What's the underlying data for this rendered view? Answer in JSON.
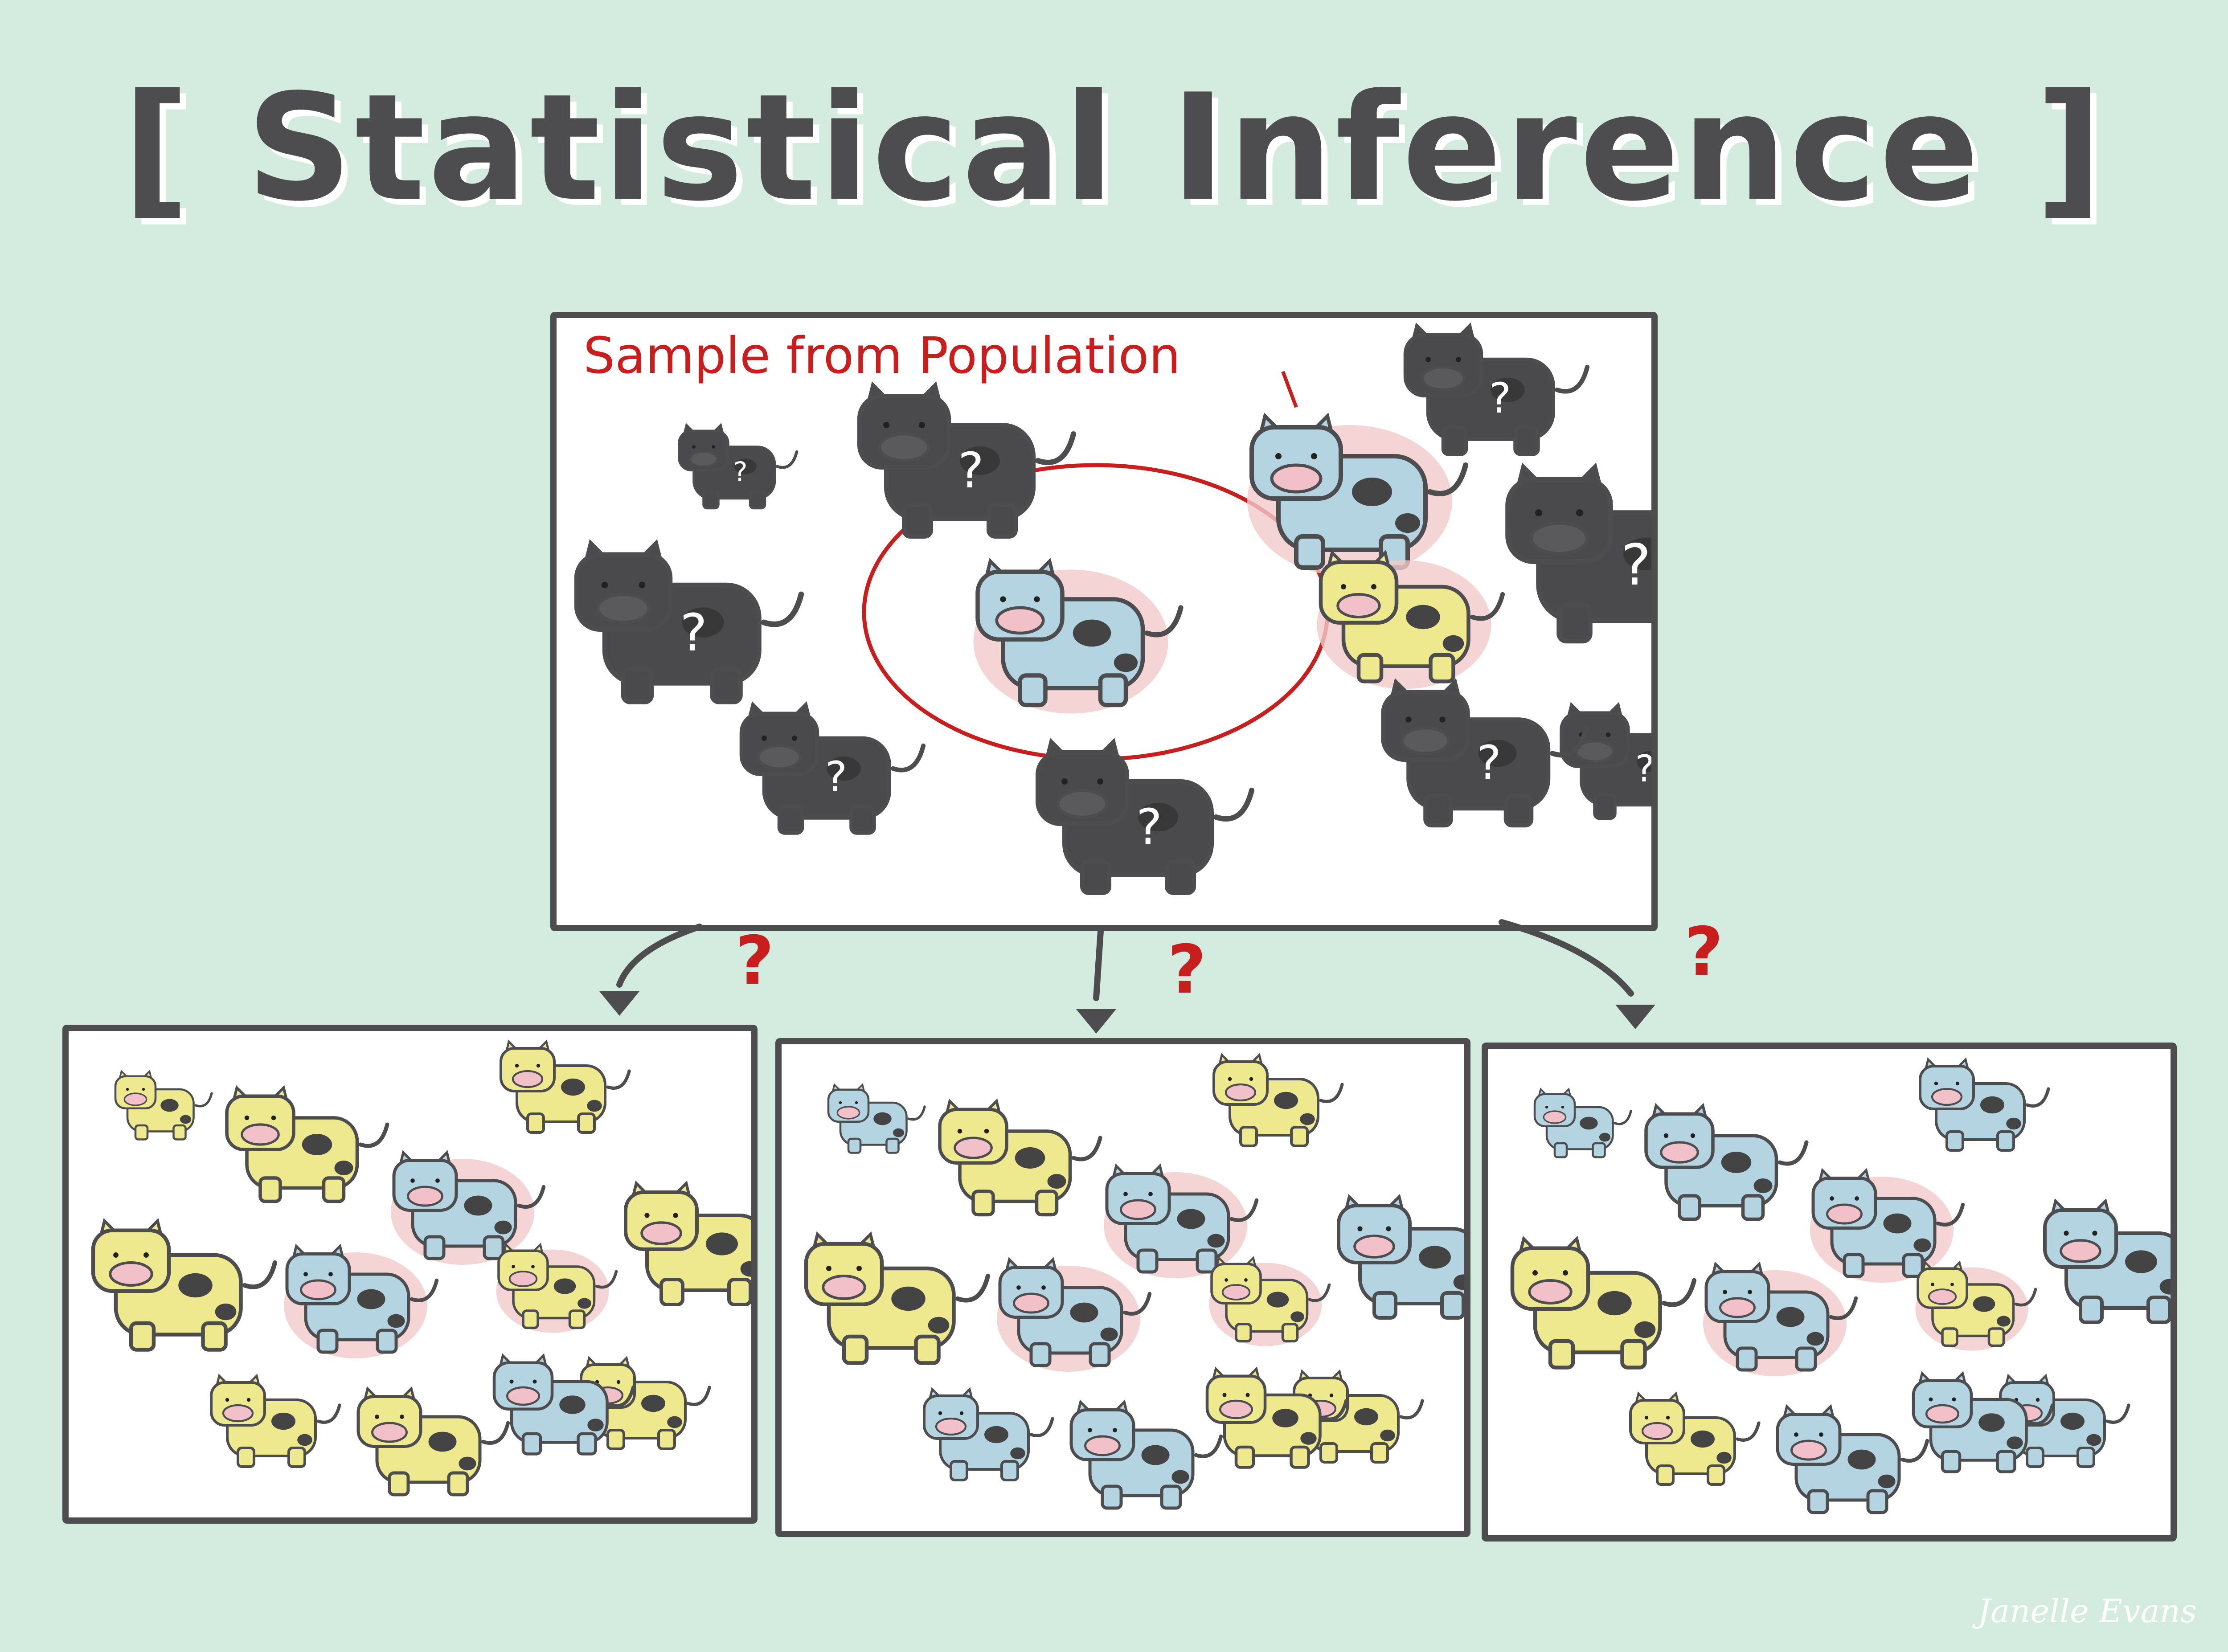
{
  "title": "[ Statistical Inference ]",
  "population_panel": {
    "label": "Sample from Population",
    "hidden_mark": "?"
  },
  "inference_marks": [
    "?",
    "?",
    "?"
  ],
  "signature": "Janelle Evans",
  "colors": {
    "background": "#d4ece0",
    "outline": "#4d4d4f",
    "unknown_cow": "#4a4a4c",
    "blue_cow": "#b3d4e0",
    "yellow_cow": "#eee88f",
    "sample_glow": "#f1c9c9",
    "sample_ring": "#c81e1e"
  },
  "cows": [
    {
      "id": 1,
      "type": "blue",
      "sampled": false
    },
    {
      "id": 2,
      "type": "yellow",
      "sampled": false
    },
    {
      "id": 3,
      "type": "yellow",
      "sampled": false
    },
    {
      "id": 4,
      "type": "blue",
      "sampled": true
    },
    {
      "id": 5,
      "type": "yellow",
      "sampled": false
    },
    {
      "id": 6,
      "type": "yellow",
      "sampled": false
    },
    {
      "id": 7,
      "type": "blue",
      "sampled": true
    },
    {
      "id": 8,
      "type": "yellow",
      "sampled": true
    },
    {
      "id": 9,
      "type": "yellow",
      "sampled": false
    },
    {
      "id": 10,
      "type": "yellow",
      "sampled": false
    },
    {
      "id": 11,
      "type": "yellow",
      "sampled": false
    },
    {
      "id": 12,
      "type": "blue",
      "sampled": false
    }
  ],
  "scenarios": [
    {
      "name": "scenario-1",
      "types": [
        "yellow",
        "yellow",
        "yellow",
        "blue",
        "yellow",
        "yellow",
        "blue",
        "yellow",
        "yellow",
        "yellow",
        "yellow",
        "blue"
      ]
    },
    {
      "name": "scenario-2",
      "types": [
        "blue",
        "yellow",
        "yellow",
        "blue",
        "blue",
        "yellow",
        "blue",
        "yellow",
        "yellow",
        "blue",
        "blue",
        "yellow"
      ]
    },
    {
      "name": "scenario-3",
      "types": [
        "blue",
        "blue",
        "blue",
        "blue",
        "blue",
        "yellow",
        "blue",
        "yellow",
        "blue",
        "yellow",
        "blue",
        "blue"
      ]
    }
  ]
}
